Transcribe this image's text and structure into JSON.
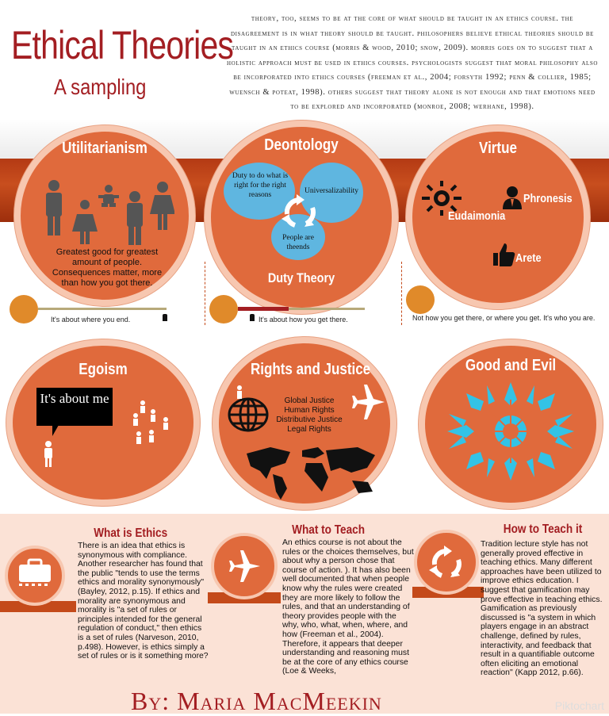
{
  "header": {
    "title": "Ethical Theories",
    "subtitle": "A sampling",
    "intro": "Theory, too, seems to be at the core of what should be taught in an ethics course. The disagreement is in what theory should be taught.  Philosophers believe ethical theories should be taught in an ethics course (Morris & Wood, 2010; Snow, 2009). Morris goes on to suggest that a holistic approach must be used in ethics courses. Psychologists suggest that moral philosophy also be incorporated into ethics courses (Freeman et al., 2004; Forsyth 1992; Penn & Collier, 1985; Wuensch & Poteat, 1998). Others suggest that theory alone is not enough and that emotions need to be explored and incorporated (Monroe, 2008; Werhane, 1998)."
  },
  "theories": {
    "utilitarianism": {
      "title": "Utilitarianism",
      "text": "Greatest good for greatest amount of people. Consequences matter, more than how you got there.",
      "caption": "It's about where you end."
    },
    "deontology": {
      "title": "Deontology",
      "duty": "Duty to do what is right for the right reasons",
      "universal": "Universalizability",
      "people": "People are theends",
      "footer": "Duty Theory",
      "caption": "It's about how you get there."
    },
    "virtue": {
      "title": "Virtue",
      "eudaimonia": "Eudaimonia",
      "phronesis": "Phronesis",
      "arete": "Arete",
      "caption": "Not how you get there, or where you get. It's who you are."
    },
    "egoism": {
      "title": "Egoism",
      "bubble": "It's about me"
    },
    "rights": {
      "title": "Rights and Justice",
      "items": [
        "Global Justice",
        "Human Rights",
        "Distributive Justice",
        "Legal Rights"
      ]
    },
    "good_evil": {
      "title": "Good and Evil"
    }
  },
  "sections": {
    "what_is": {
      "title": "What is Ethics",
      "text": "There is an idea that ethics is synonymous with compliance. Another researcher has found that the public \"tends to use the terms ethics and morality synonymously\" (Bayley, 2012, p.15).  If ethics and morality are synonymous and morality is \"a set of rules or principles intended for the general regulation of conduct,\" then ethics is a set of rules (Narveson, 2010, p.498). However, is ethics simply a set of rules or is it something more?"
    },
    "what_to_teach": {
      "title": "What to Teach",
      "text": "An ethics course is not about the rules or the choices themselves, but about why a person chose that course of action.  ).  It has also been well documented that when people know why the rules were created they are more likely to follow the rules, and that an understanding of theory provides people with the why, who, what, when, where, and how (Freeman et al., 2004).  Therefore, it appears that deeper understanding and reasoning must be at the core of any ethics course (Loe & Weeks,"
    },
    "how_to_teach": {
      "title": "How to Teach it",
      "text": "Tradition lecture style has not generally proved effective in teaching ethics.  Many different approaches have been utilized to improve ethics education. I suggest that gamification may prove effective in teaching ethics. Gamification as previously discussed is \"a system in which players engage in an abstract challenge, defined by rules, interactivity, and feedback that result in a quantifiable outcome often eliciting an emotional reaction\" (Kapp 2012, p.66)."
    }
  },
  "footer": {
    "author": "By: Maria MacMeekin",
    "watermark": "Piktochart"
  },
  "colors": {
    "accent": "#a31e22",
    "circle": "#e06a3c",
    "band": "#b43a14",
    "blue": "#5fb6e0",
    "dot": "#e08a2a"
  }
}
